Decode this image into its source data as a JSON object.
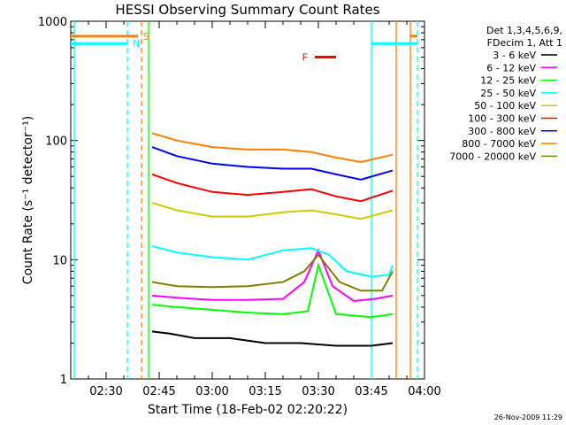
{
  "chart_data": {
    "type": "line",
    "title": "HESSI Observing Summary Count Rates",
    "xlabel": "Start Time (18-Feb-02 02:20:22)",
    "ylabel": "Count Rate (s⁻¹ detector⁻¹)",
    "yscale": "log",
    "ylim": [
      1,
      1000
    ],
    "xlim": [
      "02:20",
      "04:00"
    ],
    "x_ticks": [
      "02:30",
      "02:45",
      "03:00",
      "03:15",
      "03:30",
      "03:45",
      "04:00"
    ],
    "y_ticks": [
      "1",
      "10",
      "100",
      "1000"
    ],
    "legend_header": [
      "Det 1,3,4,5,6,9,",
      "FDecim 1, Att 1"
    ],
    "series": [
      {
        "name": "3 - 6 keV",
        "color": "#000000",
        "x": [
          "02:43",
          "02:48",
          "02:55",
          "03:05",
          "03:15",
          "03:25",
          "03:35",
          "03:45",
          "03:51"
        ],
        "y": [
          2.5,
          2.4,
          2.2,
          2.2,
          2.0,
          2.0,
          1.9,
          1.9,
          2.0
        ]
      },
      {
        "name": "6 - 12 keV",
        "color": "#ff00ff",
        "x": [
          "02:43",
          "02:50",
          "03:00",
          "03:10",
          "03:20",
          "03:26",
          "03:30",
          "03:34",
          "03:40",
          "03:46",
          "03:51"
        ],
        "y": [
          5.0,
          4.8,
          4.6,
          4.6,
          4.7,
          6.5,
          12.0,
          6.0,
          4.5,
          4.7,
          5.0
        ]
      },
      {
        "name": "12 - 25 keV",
        "color": "#00ff00",
        "x": [
          "02:43",
          "02:50",
          "03:00",
          "03:10",
          "03:20",
          "03:27",
          "03:30",
          "03:35",
          "03:45",
          "03:51"
        ],
        "y": [
          4.2,
          4.0,
          3.8,
          3.6,
          3.5,
          3.7,
          9.0,
          3.5,
          3.3,
          3.5
        ]
      },
      {
        "name": "25 - 50 keV",
        "color": "#00ffff",
        "x": [
          "02:43",
          "02:50",
          "03:00",
          "03:10",
          "03:20",
          "03:28",
          "03:33",
          "03:38",
          "03:45",
          "03:50",
          "03:51"
        ],
        "y": [
          13.0,
          11.5,
          10.5,
          10.0,
          12.0,
          12.5,
          11.0,
          8.0,
          7.2,
          7.5,
          9.0
        ]
      },
      {
        "name": "50 - 100 keV",
        "color": "#cccc00",
        "x": [
          "02:43",
          "02:50",
          "03:00",
          "03:10",
          "03:20",
          "03:28",
          "03:35",
          "03:42",
          "03:51"
        ],
        "y": [
          30,
          26,
          23,
          23,
          25,
          26,
          24,
          22,
          26
        ]
      },
      {
        "name": "100 - 300 keV",
        "color": "#ff0000",
        "x": [
          "02:43",
          "02:50",
          "03:00",
          "03:10",
          "03:20",
          "03:28",
          "03:35",
          "03:42",
          "03:51"
        ],
        "y": [
          52,
          44,
          37,
          35,
          37,
          39,
          34,
          31,
          38
        ]
      },
      {
        "name": "300 - 800 keV",
        "color": "#0000ff",
        "x": [
          "02:43",
          "02:50",
          "03:00",
          "03:10",
          "03:20",
          "03:28",
          "03:35",
          "03:42",
          "03:51"
        ],
        "y": [
          88,
          74,
          64,
          60,
          58,
          58,
          52,
          47,
          56
        ]
      },
      {
        "name": "800 - 7000 keV",
        "color": "#ff8000",
        "x": [
          "02:43",
          "02:50",
          "03:00",
          "03:10",
          "03:20",
          "03:28",
          "03:35",
          "03:42",
          "03:51"
        ],
        "y": [
          115,
          100,
          88,
          84,
          84,
          80,
          72,
          66,
          76
        ]
      },
      {
        "name": "7000 - 20000 keV",
        "color": "#808000",
        "x": [
          "02:43",
          "02:50",
          "03:00",
          "03:10",
          "03:20",
          "03:26",
          "03:30",
          "03:36",
          "03:42",
          "03:48",
          "03:51"
        ],
        "y": [
          6.5,
          6.0,
          5.9,
          6.0,
          6.5,
          8.0,
          11.0,
          6.5,
          5.5,
          5.5,
          8.0
        ]
      }
    ],
    "markers": [
      {
        "label": "N",
        "color": "#00ffff",
        "level": 650,
        "x_start": "02:20",
        "x_end": "02:36"
      },
      {
        "label": "S",
        "color": "#ff8000",
        "level": 750,
        "x_start": "02:20",
        "x_end": "02:39"
      },
      {
        "label": "F",
        "color": "#ff0000",
        "level": 500,
        "x_start": "03:29",
        "x_end": "03:35"
      }
    ],
    "markers_right": [
      {
        "color": "#00ffff",
        "level": 650,
        "x_start": "03:45",
        "x_end": "03:58"
      },
      {
        "color": "#ff8000",
        "level": 750,
        "x_start": "03:56",
        "x_end": "03:58"
      }
    ],
    "vertical_lines": [
      {
        "color": "#00ffff",
        "x": "02:21",
        "style": "solid"
      },
      {
        "color": "#00ffff",
        "x": "02:36",
        "style": "dashed"
      },
      {
        "color": "#ff8000",
        "x": "02:40",
        "style": "dashed"
      },
      {
        "color": "#00ff00",
        "x": "02:42",
        "style": "solid"
      },
      {
        "color": "#00ffff",
        "x": "03:45",
        "style": "solid"
      },
      {
        "color": "#ff8000",
        "x": "03:52",
        "style": "solid"
      },
      {
        "color": "#ff8000",
        "x": "03:56",
        "style": "solid"
      },
      {
        "color": "#00ffff",
        "x": "03:58",
        "style": "dashed"
      }
    ],
    "timestamp": "26-Nov-2009 11:29"
  }
}
